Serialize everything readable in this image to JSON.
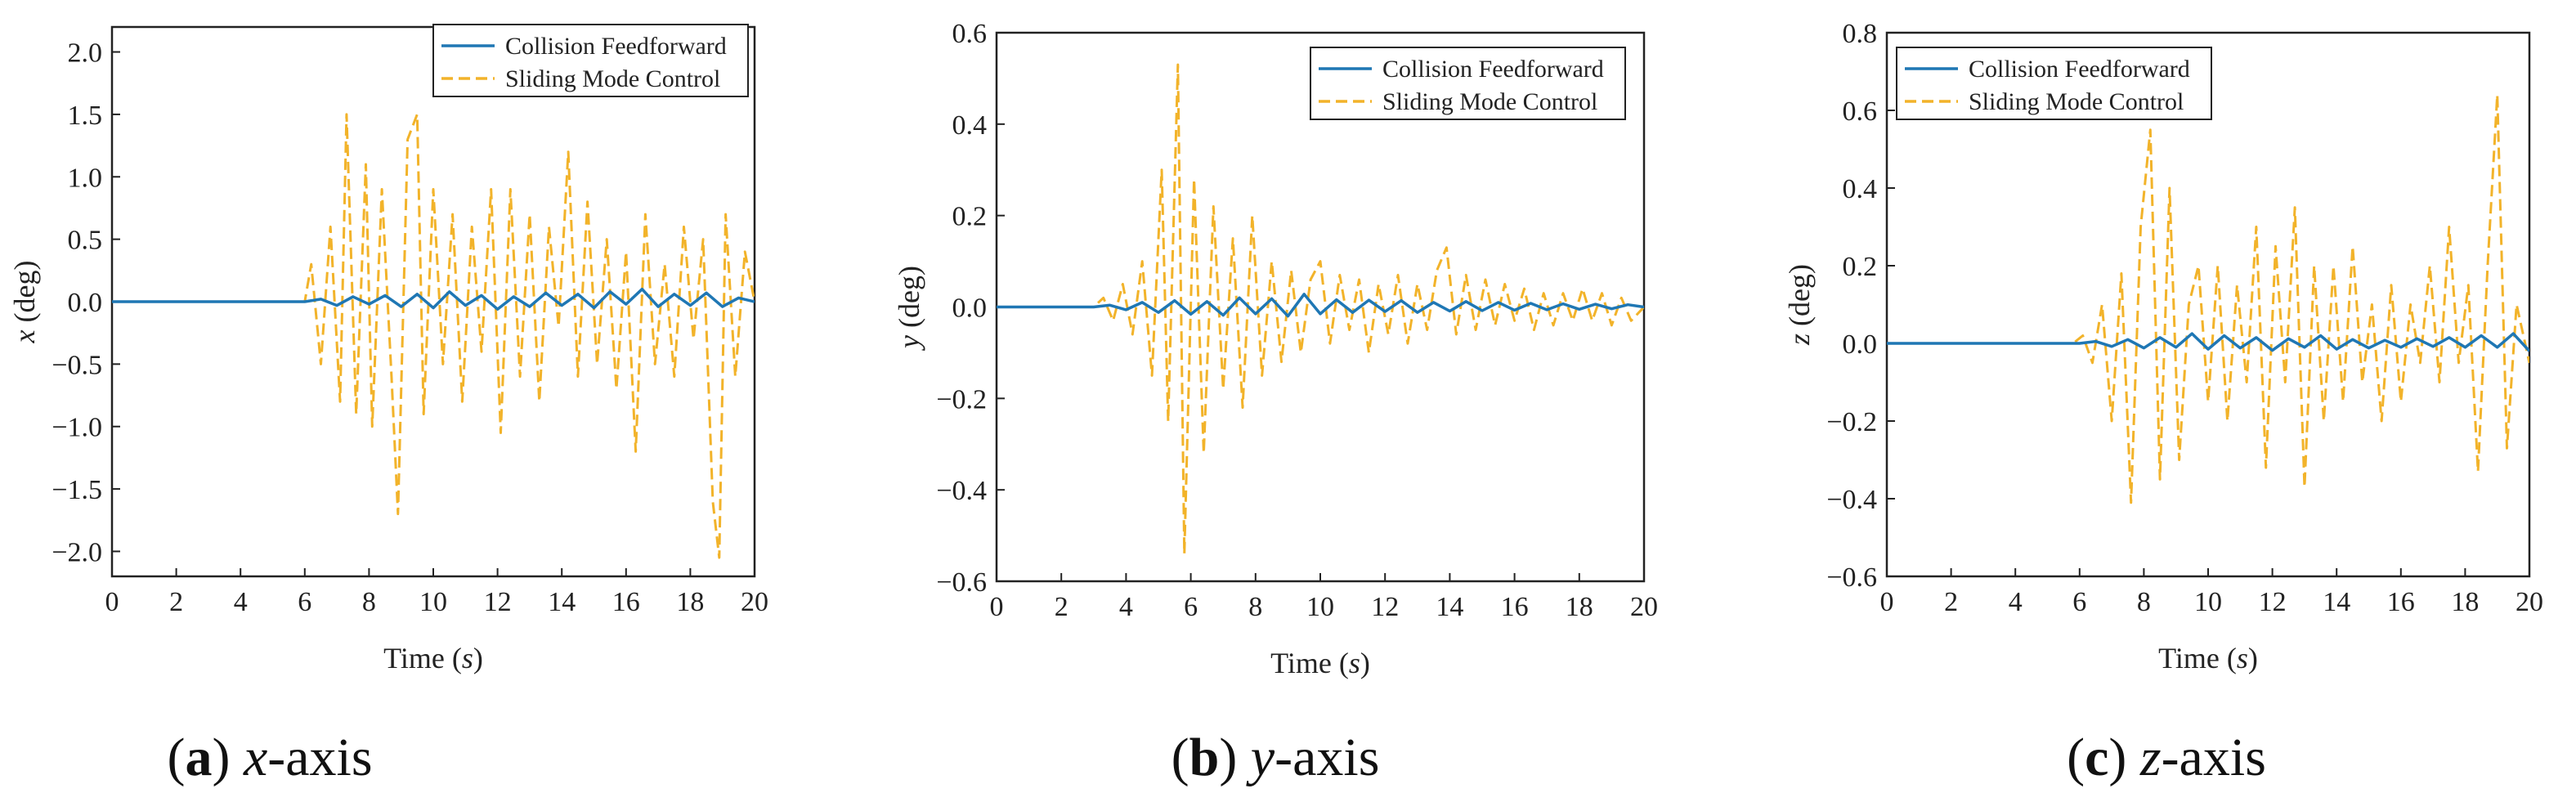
{
  "colors": {
    "collision": "#1f77b4",
    "sliding": "#f2b32a",
    "axis": "#222222"
  },
  "chart_data": [
    {
      "type": "line",
      "caption": {
        "letter": "a",
        "var": "x",
        "suffix": "-axis"
      },
      "xlabel": "Time",
      "xunit": "s",
      "ylabel_var": "x",
      "ylabel_unit": " (deg)",
      "xlim": [
        0,
        20
      ],
      "ylim": [
        -2.2,
        2.2
      ],
      "xticks": [
        "0",
        "2",
        "4",
        "6",
        "8",
        "10",
        "12",
        "14",
        "16",
        "18",
        "20"
      ],
      "yticks": [
        "-2.0",
        "-1.5",
        "-1.0",
        "-0.5",
        "0.0",
        "0.5",
        "1.0",
        "1.5",
        "2.0"
      ],
      "legend_position": "top-right",
      "series": [
        {
          "name": "Collision Feedforward",
          "style": "solid",
          "x": [
            0,
            6,
            6.5,
            7,
            7.5,
            8,
            8.5,
            9,
            9.5,
            10,
            10.5,
            11,
            11.5,
            12,
            12.5,
            13,
            13.5,
            14,
            14.5,
            15,
            15.5,
            16,
            16.5,
            17,
            17.5,
            18,
            18.5,
            19,
            19.5,
            20
          ],
          "y": [
            0,
            0,
            0.02,
            -0.03,
            0.04,
            -0.02,
            0.05,
            -0.04,
            0.06,
            -0.05,
            0.08,
            -0.03,
            0.05,
            -0.06,
            0.04,
            -0.04,
            0.07,
            -0.03,
            0.06,
            -0.05,
            0.08,
            -0.02,
            0.1,
            -0.04,
            0.06,
            -0.03,
            0.07,
            -0.04,
            0.03,
            0.0
          ]
        },
        {
          "name": "Sliding Mode Control",
          "style": "dashed",
          "x": [
            0,
            6,
            6.2,
            6.5,
            6.8,
            7.1,
            7.3,
            7.6,
            7.9,
            8.1,
            8.4,
            8.7,
            8.9,
            9.2,
            9.5,
            9.7,
            10,
            10.3,
            10.6,
            10.9,
            11.2,
            11.5,
            11.8,
            12.1,
            12.4,
            12.7,
            13,
            13.3,
            13.6,
            13.9,
            14.2,
            14.5,
            14.8,
            15.1,
            15.4,
            15.7,
            16,
            16.3,
            16.6,
            16.9,
            17.2,
            17.5,
            17.8,
            18.1,
            18.4,
            18.7,
            18.9,
            19.1,
            19.4,
            19.7,
            20
          ],
          "y": [
            0,
            0,
            0.3,
            -0.5,
            0.6,
            -0.8,
            1.5,
            -0.9,
            1.1,
            -1.0,
            0.9,
            -0.6,
            -1.7,
            1.3,
            1.5,
            -0.9,
            0.9,
            -0.5,
            0.7,
            -0.8,
            0.6,
            -0.4,
            0.9,
            -1.05,
            0.9,
            -0.6,
            0.7,
            -0.8,
            0.6,
            -0.2,
            1.2,
            -0.6,
            0.8,
            -0.5,
            0.5,
            -0.7,
            0.4,
            -1.2,
            0.7,
            -0.5,
            0.3,
            -0.6,
            0.6,
            -0.3,
            0.5,
            -1.6,
            -2.05,
            0.7,
            -0.6,
            0.4,
            0.0
          ]
        }
      ]
    },
    {
      "type": "line",
      "caption": {
        "letter": "b",
        "var": "y",
        "suffix": "-axis"
      },
      "xlabel": "Time",
      "xunit": "s",
      "ylabel_var": "y",
      "ylabel_unit": " (deg)",
      "xlim": [
        0,
        20
      ],
      "ylim": [
        -0.6,
        0.6
      ],
      "xticks": [
        "0",
        "2",
        "4",
        "6",
        "8",
        "10",
        "12",
        "14",
        "16",
        "18",
        "20"
      ],
      "yticks": [
        "-0.6",
        "-0.4",
        "-0.2",
        "0.0",
        "0.2",
        "0.4",
        "0.6"
      ],
      "legend_position": "top-right",
      "series": [
        {
          "name": "Collision Feedforward",
          "style": "solid",
          "x": [
            0,
            3,
            3.5,
            4,
            4.5,
            5,
            5.5,
            6,
            6.5,
            7,
            7.5,
            8,
            8.5,
            9,
            9.5,
            10,
            10.5,
            11,
            11.5,
            12,
            12.5,
            13,
            13.5,
            14,
            14.5,
            15,
            15.5,
            16,
            16.5,
            17,
            17.5,
            18,
            18.5,
            19,
            19.5,
            20
          ],
          "y": [
            0,
            0,
            0.004,
            -0.006,
            0.01,
            -0.012,
            0.014,
            -0.016,
            0.012,
            -0.018,
            0.02,
            -0.015,
            0.018,
            -0.02,
            0.028,
            -0.015,
            0.016,
            -0.012,
            0.015,
            -0.01,
            0.014,
            -0.012,
            0.01,
            -0.009,
            0.012,
            -0.008,
            0.01,
            -0.007,
            0.008,
            -0.006,
            0.007,
            -0.005,
            0.006,
            -0.004,
            0.005,
            0.0
          ]
        },
        {
          "name": "Sliding Mode Control",
          "style": "dashed",
          "x": [
            0,
            3,
            3.3,
            3.6,
            3.9,
            4.2,
            4.5,
            4.8,
            5.1,
            5.3,
            5.6,
            5.8,
            6.1,
            6.4,
            6.7,
            7,
            7.3,
            7.6,
            7.9,
            8.2,
            8.5,
            8.8,
            9.1,
            9.4,
            9.7,
            10,
            10.3,
            10.6,
            10.9,
            11.2,
            11.5,
            11.8,
            12.1,
            12.4,
            12.7,
            13,
            13.3,
            13.6,
            13.9,
            14.2,
            14.5,
            14.8,
            15.1,
            15.4,
            15.7,
            16,
            16.3,
            16.6,
            16.9,
            17.2,
            17.5,
            17.8,
            18.1,
            18.4,
            18.7,
            19,
            19.3,
            19.6,
            20
          ],
          "y": [
            0,
            0,
            0.02,
            -0.03,
            0.05,
            -0.06,
            0.1,
            -0.15,
            0.3,
            -0.25,
            0.53,
            -0.54,
            0.28,
            -0.32,
            0.22,
            -0.18,
            0.15,
            -0.22,
            0.2,
            -0.15,
            0.1,
            -0.12,
            0.08,
            -0.1,
            0.06,
            0.1,
            -0.08,
            0.07,
            -0.05,
            0.06,
            -0.1,
            0.05,
            -0.06,
            0.07,
            -0.08,
            0.05,
            -0.05,
            0.08,
            0.13,
            -0.06,
            0.07,
            -0.05,
            0.06,
            -0.04,
            0.05,
            -0.03,
            0.04,
            -0.05,
            0.03,
            -0.04,
            0.03,
            -0.03,
            0.04,
            -0.03,
            0.03,
            -0.04,
            0.02,
            -0.03,
            0.0
          ]
        }
      ]
    },
    {
      "type": "line",
      "caption": {
        "letter": "c",
        "var": "z",
        "suffix": "-axis"
      },
      "xlabel": "Time",
      "xunit": "s",
      "ylabel_var": "z",
      "ylabel_unit": " (deg)",
      "xlim": [
        0,
        20
      ],
      "ylim": [
        -0.6,
        0.8
      ],
      "xticks": [
        "0",
        "2",
        "4",
        "6",
        "8",
        "10",
        "12",
        "14",
        "16",
        "18",
        "20"
      ],
      "yticks": [
        "-0.6",
        "-0.4",
        "-0.2",
        "0.0",
        "0.2",
        "0.4",
        "0.6",
        "0.8"
      ],
      "legend_position": "top-left",
      "series": [
        {
          "name": "Collision Feedforward",
          "style": "solid",
          "x": [
            0,
            6,
            6.5,
            7,
            7.5,
            8,
            8.5,
            9,
            9.5,
            10,
            10.5,
            11,
            11.5,
            12,
            12.5,
            13,
            13.5,
            14,
            14.5,
            15,
            15.5,
            16,
            16.5,
            17,
            17.5,
            18,
            18.5,
            19,
            19.5,
            20
          ],
          "y": [
            0,
            0,
            0.005,
            -0.008,
            0.01,
            -0.012,
            0.015,
            -0.01,
            0.025,
            -0.015,
            0.02,
            -0.012,
            0.015,
            -0.018,
            0.012,
            -0.01,
            0.02,
            -0.015,
            0.01,
            -0.012,
            0.008,
            -0.01,
            0.012,
            -0.008,
            0.015,
            -0.01,
            0.02,
            -0.01,
            0.025,
            -0.02
          ]
        },
        {
          "name": "Sliding Mode Control",
          "style": "dashed",
          "x": [
            0,
            5.8,
            6.1,
            6.4,
            6.7,
            7,
            7.3,
            7.6,
            7.9,
            8.2,
            8.5,
            8.8,
            9.1,
            9.4,
            9.7,
            10,
            10.3,
            10.6,
            10.9,
            11.2,
            11.5,
            11.8,
            12.1,
            12.4,
            12.7,
            13,
            13.3,
            13.6,
            13.9,
            14.2,
            14.5,
            14.8,
            15.1,
            15.4,
            15.7,
            16,
            16.3,
            16.6,
            16.9,
            17.2,
            17.5,
            17.8,
            18.1,
            18.4,
            18.7,
            19,
            19.3,
            19.6,
            20
          ],
          "y": [
            0,
            0,
            0.02,
            -0.05,
            0.1,
            -0.2,
            0.18,
            -0.41,
            0.3,
            0.55,
            -0.35,
            0.4,
            -0.3,
            0.1,
            0.2,
            -0.15,
            0.2,
            -0.2,
            0.15,
            -0.1,
            0.3,
            -0.32,
            0.25,
            -0.1,
            0.35,
            -0.37,
            0.2,
            -0.2,
            0.2,
            -0.15,
            0.25,
            -0.1,
            0.1,
            -0.2,
            0.15,
            -0.15,
            0.1,
            -0.05,
            0.2,
            -0.1,
            0.3,
            -0.05,
            0.15,
            -0.33,
            0.2,
            0.64,
            -0.27,
            0.1,
            -0.05
          ]
        }
      ]
    }
  ]
}
